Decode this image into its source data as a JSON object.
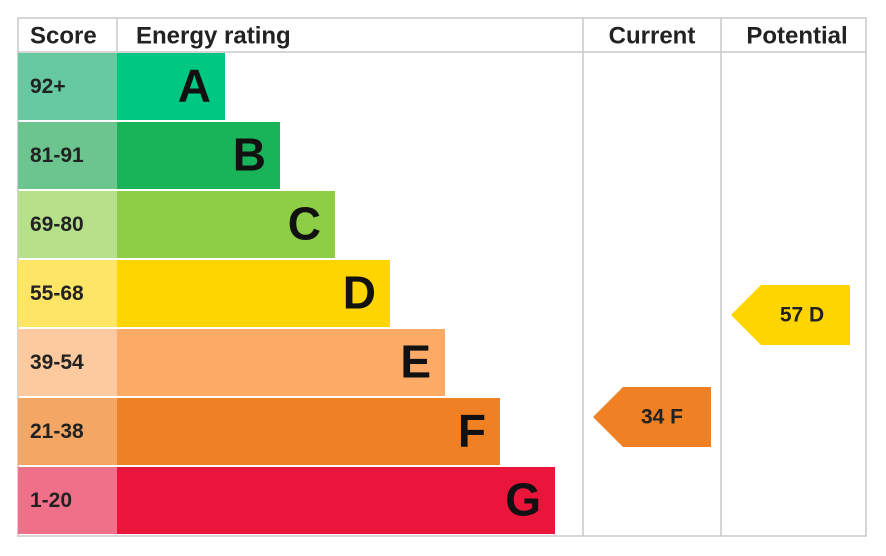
{
  "header": {
    "score": "Score",
    "rating": "Energy rating",
    "current": "Current",
    "potential": "Potential"
  },
  "bands": [
    {
      "score": "92+",
      "letter": "A"
    },
    {
      "score": "81-91",
      "letter": "B"
    },
    {
      "score": "69-80",
      "letter": "C"
    },
    {
      "score": "55-68",
      "letter": "D"
    },
    {
      "score": "39-54",
      "letter": "E"
    },
    {
      "score": "21-38",
      "letter": "F"
    },
    {
      "score": "1-20",
      "letter": "G"
    }
  ],
  "current": {
    "label": "34 F"
  },
  "potential": {
    "label": "57 D"
  }
}
